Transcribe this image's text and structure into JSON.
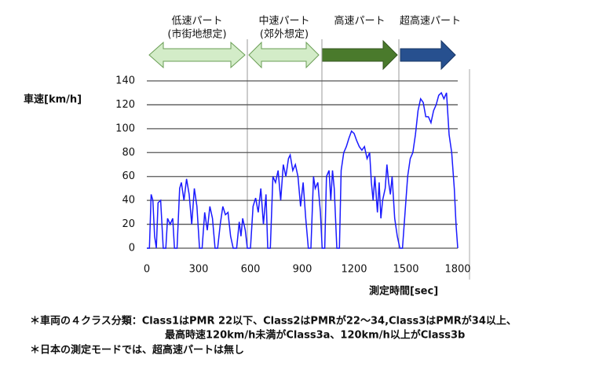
{
  "chart_data": {
    "type": "line",
    "y_label": "車速[km/h]",
    "x_label": "測定時間[sec]",
    "phases": [
      {
        "name": "低速パート",
        "subtitle": "(市街地想定)"
      },
      {
        "name": "中速パート",
        "subtitle": "(郊外想定)"
      },
      {
        "name": "高速パート"
      },
      {
        "name": "超高速パート"
      }
    ],
    "x": [
      0,
      15,
      25,
      35,
      45,
      55,
      65,
      80,
      95,
      110,
      120,
      135,
      150,
      160,
      175,
      190,
      200,
      215,
      230,
      245,
      260,
      275,
      290,
      305,
      320,
      335,
      350,
      365,
      380,
      395,
      410,
      425,
      440,
      455,
      470,
      485,
      500,
      520,
      535,
      545,
      555,
      570,
      582,
      600,
      615,
      630,
      645,
      660,
      675,
      690,
      700,
      715,
      730,
      745,
      760,
      775,
      790,
      805,
      820,
      830,
      845,
      860,
      875,
      890,
      905,
      920,
      935,
      950,
      965,
      975,
      990,
      1005,
      1015,
      1030,
      1040,
      1055,
      1065,
      1075,
      1085,
      1100,
      1115,
      1125,
      1140,
      1155,
      1170,
      1185,
      1200,
      1215,
      1230,
      1245,
      1260,
      1275,
      1290,
      1300,
      1310,
      1320,
      1335,
      1345,
      1355,
      1365,
      1380,
      1390,
      1400,
      1410,
      1420,
      1435,
      1450,
      1465,
      1480,
      1495,
      1510,
      1525,
      1540,
      1555,
      1570,
      1585,
      1600,
      1615,
      1630,
      1645,
      1660,
      1675,
      1690,
      1705,
      1720,
      1735,
      1750,
      1765,
      1780,
      1790,
      1800
    ],
    "values": [
      0,
      0,
      45,
      40,
      10,
      0,
      38,
      40,
      0,
      0,
      25,
      20,
      25,
      0,
      0,
      50,
      55,
      40,
      58,
      45,
      20,
      50,
      35,
      0,
      0,
      30,
      15,
      35,
      25,
      0,
      0,
      20,
      35,
      28,
      30,
      10,
      0,
      0,
      22,
      10,
      25,
      15,
      0,
      0,
      35,
      42,
      30,
      50,
      20,
      45,
      0,
      0,
      60,
      55,
      65,
      40,
      70,
      60,
      75,
      78,
      65,
      70,
      60,
      35,
      55,
      25,
      0,
      0,
      60,
      50,
      55,
      30,
      0,
      0,
      60,
      65,
      40,
      65,
      50,
      0,
      0,
      65,
      80,
      85,
      92,
      98,
      96,
      90,
      85,
      82,
      85,
      75,
      80,
      55,
      40,
      60,
      30,
      55,
      25,
      40,
      50,
      70,
      55,
      45,
      60,
      25,
      10,
      0,
      0,
      30,
      60,
      75,
      80,
      95,
      115,
      125,
      122,
      110,
      110,
      105,
      115,
      120,
      128,
      130,
      125,
      130,
      95,
      80,
      50,
      20,
      0
    ],
    "color": "#1a1aff",
    "xlim": [
      0,
      1800
    ],
    "xticks": [
      0,
      300,
      600,
      900,
      1200,
      1500,
      1800
    ],
    "ylim": [
      0,
      140
    ],
    "yticks": [
      0,
      20,
      40,
      60,
      80,
      100,
      120,
      140
    ],
    "grid": true
  },
  "notes": [
    "＊車両の４クラス分類：Class1はPMR 22以下、Class2はPMRが22～34,Class3はPMRが34以上、",
    "最高時速120km/h未満がClass3a、120km/h以上がClass3b",
    "＊日本の測定モードでは、超高速パートは無し"
  ]
}
